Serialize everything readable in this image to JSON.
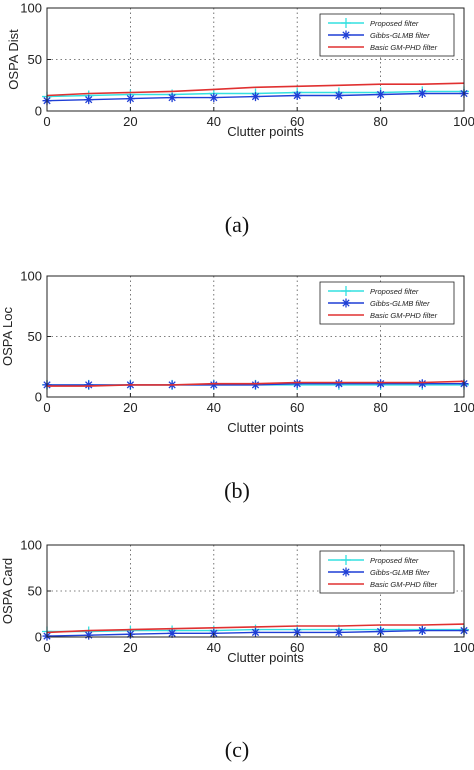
{
  "chart_data": [
    {
      "type": "line",
      "panel_label": "(a)",
      "xlabel": "Clutter points",
      "ylabel": "OSPA Dist",
      "xlim": [
        0,
        100
      ],
      "ylim": [
        0,
        100
      ],
      "x_ticks": [
        "0",
        "20",
        "40",
        "60",
        "80",
        "100"
      ],
      "y_ticks": [
        "0",
        "50",
        "100"
      ],
      "grid": true,
      "legend_position": "top-right",
      "series": [
        {
          "name": "Proposed filter",
          "color": "#33e0e0",
          "marker": "plus",
          "x": [
            0,
            10,
            20,
            30,
            40,
            50,
            60,
            70,
            80,
            90,
            100
          ],
          "y": [
            14,
            15,
            16,
            16,
            17,
            17,
            18,
            18,
            18,
            19,
            19
          ]
        },
        {
          "name": "Gibbs-GLMB filter",
          "color": "#1f3fd6",
          "marker": "star",
          "x": [
            0,
            10,
            20,
            30,
            40,
            50,
            60,
            70,
            80,
            90,
            100
          ],
          "y": [
            10,
            11,
            12,
            13,
            13,
            14,
            15,
            15,
            16,
            17,
            17
          ]
        },
        {
          "name": "Basic GM-PHD filter",
          "color": "#e03030",
          "marker": "none",
          "x": [
            0,
            10,
            20,
            30,
            40,
            50,
            60,
            70,
            80,
            90,
            100
          ],
          "y": [
            15,
            17,
            18,
            19,
            21,
            23,
            24,
            25,
            26,
            26,
            27
          ]
        }
      ]
    },
    {
      "type": "line",
      "panel_label": "(b)",
      "xlabel": "Clutter points",
      "ylabel": "OSPA Loc",
      "xlim": [
        0,
        100
      ],
      "ylim": [
        0,
        100
      ],
      "x_ticks": [
        "0",
        "20",
        "40",
        "60",
        "80",
        "100"
      ],
      "y_ticks": [
        "0",
        "50",
        "100"
      ],
      "grid": true,
      "legend_position": "top-right",
      "series": [
        {
          "name": "Proposed filter",
          "color": "#33e0e0",
          "marker": "plus",
          "x": [
            0,
            10,
            20,
            30,
            40,
            50,
            60,
            70,
            80,
            90,
            100
          ],
          "y": [
            10,
            10,
            10,
            10,
            10,
            10,
            10,
            10,
            10,
            10,
            10
          ]
        },
        {
          "name": "Gibbs-GLMB filter",
          "color": "#1f3fd6",
          "marker": "star",
          "x": [
            0,
            10,
            20,
            30,
            40,
            50,
            60,
            70,
            80,
            90,
            100
          ],
          "y": [
            10,
            10,
            10,
            10,
            10,
            10,
            11,
            11,
            11,
            11,
            11
          ]
        },
        {
          "name": "Basic GM-PHD filter",
          "color": "#e03030",
          "marker": "none",
          "x": [
            0,
            10,
            20,
            30,
            40,
            50,
            60,
            70,
            80,
            90,
            100
          ],
          "y": [
            9,
            9,
            10,
            10,
            11,
            11,
            12,
            12,
            12,
            12,
            13
          ]
        }
      ]
    },
    {
      "type": "line",
      "panel_label": "(c)",
      "xlabel": "Clutter points",
      "ylabel": "OSPA Card",
      "xlim": [
        0,
        100
      ],
      "ylim": [
        0,
        100
      ],
      "x_ticks": [
        "0",
        "20",
        "40",
        "60",
        "80",
        "100"
      ],
      "y_ticks": [
        "0",
        "50",
        "100"
      ],
      "grid": true,
      "legend_position": "top-right",
      "series": [
        {
          "name": "Proposed filter",
          "color": "#33e0e0",
          "marker": "plus",
          "x": [
            0,
            10,
            20,
            30,
            40,
            50,
            60,
            70,
            80,
            90,
            100
          ],
          "y": [
            6,
            6,
            7,
            7,
            7,
            8,
            8,
            8,
            8,
            8,
            8
          ]
        },
        {
          "name": "Gibbs-GLMB filter",
          "color": "#1f3fd6",
          "marker": "star",
          "x": [
            0,
            10,
            20,
            30,
            40,
            50,
            60,
            70,
            80,
            90,
            100
          ],
          "y": [
            1,
            2,
            3,
            4,
            4,
            5,
            5,
            5,
            6,
            7,
            7
          ]
        },
        {
          "name": "Basic GM-PHD filter",
          "color": "#e03030",
          "marker": "none",
          "x": [
            0,
            10,
            20,
            30,
            40,
            50,
            60,
            70,
            80,
            90,
            100
          ],
          "y": [
            5,
            7,
            8,
            9,
            10,
            11,
            12,
            12,
            13,
            13,
            14
          ]
        }
      ]
    }
  ]
}
